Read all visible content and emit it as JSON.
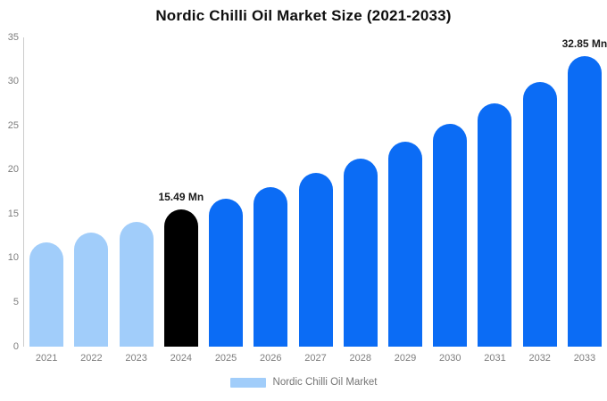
{
  "chart_data": {
    "type": "bar",
    "title": "Nordic Chilli Oil Market Size (2021-2033)",
    "categories": [
      "2021",
      "2022",
      "2023",
      "2024",
      "2025",
      "2026",
      "2027",
      "2028",
      "2029",
      "2030",
      "2031",
      "2032",
      "2033"
    ],
    "series": [
      {
        "name": "Nordic Chilli Oil Market",
        "values": [
          11.8,
          12.9,
          14.1,
          15.49,
          16.7,
          18.1,
          19.7,
          21.3,
          23.2,
          25.2,
          27.5,
          30.0,
          32.85
        ]
      }
    ],
    "unit": "Mn",
    "value_labels": [
      {
        "index": 3,
        "text": "15.49 Mn"
      },
      {
        "index": 12,
        "text": "32.85 Mn"
      }
    ],
    "bar_roles": [
      "historical",
      "historical",
      "historical",
      "base-year",
      "forecast",
      "forecast",
      "forecast",
      "forecast",
      "forecast",
      "forecast",
      "forecast",
      "forecast",
      "forecast"
    ],
    "colors": {
      "historical": "#A1CDFA",
      "base-year": "#000000",
      "forecast": "#0B6CF5",
      "axis_line": "#CCCCCC",
      "tick_text": "#7D7D7D",
      "title_text": "#0F0F0F",
      "value_label_text": "#1A1A1A"
    },
    "y_ticks": [
      "0",
      "5",
      "10",
      "15",
      "20",
      "25",
      "30",
      "35"
    ],
    "ylim": [
      0,
      35
    ],
    "xlabel": "",
    "ylabel": "",
    "grid": false,
    "legend_position": "bottom"
  },
  "legend": {
    "items": [
      {
        "label": "Nordic Chilli Oil Market",
        "swatch_color": "#A1CDFA"
      }
    ]
  }
}
